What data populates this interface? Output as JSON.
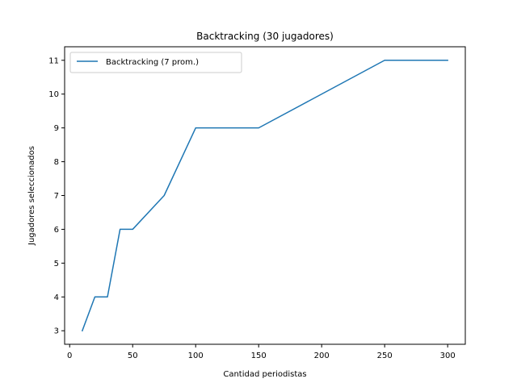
{
  "chart_data": {
    "type": "line",
    "title": "Backtracking (30 jugadores)",
    "xlabel": "Cantidad periodistas",
    "ylabel": "Jugadores seleccionados",
    "xlim": [
      -4,
      314
    ],
    "ylim": [
      2.6,
      11.4
    ],
    "xticks": [
      0,
      50,
      100,
      150,
      200,
      250,
      300
    ],
    "yticks": [
      3,
      4,
      5,
      6,
      7,
      8,
      9,
      10,
      11
    ],
    "grid": false,
    "legend_position": "top-left",
    "series": [
      {
        "name": "Backtracking (7 prom.)",
        "color": "#1f77b4",
        "x": [
          10,
          20,
          30,
          40,
          50,
          75,
          100,
          150,
          250,
          300
        ],
        "y": [
          3,
          4,
          4,
          6,
          6,
          7,
          9,
          9,
          11,
          11
        ]
      }
    ]
  }
}
